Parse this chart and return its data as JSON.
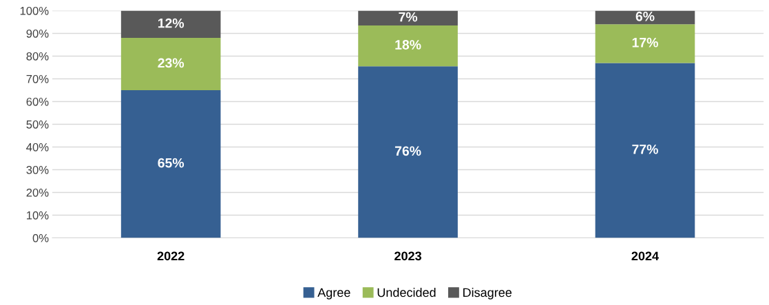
{
  "chart_data": {
    "type": "bar",
    "stacked": true,
    "categories": [
      "2022",
      "2023",
      "2024"
    ],
    "series": [
      {
        "name": "Agree",
        "color": "#366092",
        "values": [
          65,
          75.5,
          77
        ],
        "value_labels": [
          "65%",
          "76%",
          "77%"
        ]
      },
      {
        "name": "Undecided",
        "color": "#9bbb59",
        "values": [
          23,
          18,
          17
        ],
        "value_labels": [
          "23%",
          "18%",
          "17%"
        ]
      },
      {
        "name": "Disagree",
        "color": "#595959",
        "values": [
          12,
          6.5,
          6
        ],
        "value_labels": [
          "12%",
          "7%",
          "6%"
        ]
      }
    ],
    "ylim": [
      0,
      100
    ],
    "yticks": [
      {
        "value": 0,
        "label": "0%"
      },
      {
        "value": 10,
        "label": "10%"
      },
      {
        "value": 20,
        "label": "20%"
      },
      {
        "value": 30,
        "label": "30%"
      },
      {
        "value": 40,
        "label": "40%"
      },
      {
        "value": 50,
        "label": "50%"
      },
      {
        "value": 60,
        "label": "60%"
      },
      {
        "value": 70,
        "label": "70%"
      },
      {
        "value": 80,
        "label": "80%"
      },
      {
        "value": 90,
        "label": "90%"
      },
      {
        "value": 100,
        "label": "100%"
      }
    ],
    "grid": "y",
    "legend": "bottom"
  }
}
